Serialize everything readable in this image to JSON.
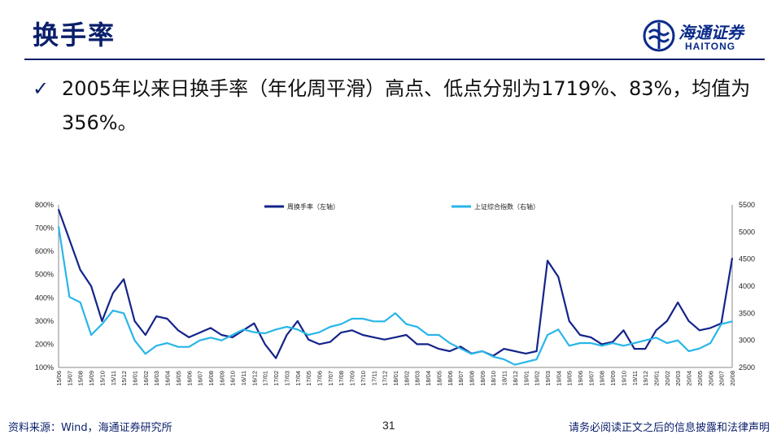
{
  "page": {
    "title": "换手率",
    "bullet_text": "2005年以来日换手率（年化周平滑）高点、低点分别为1719%、83%，均值为356%。",
    "logo_cn": "海通证券",
    "logo_en": "HAITONG",
    "source": "资料来源：Wind，海通证券研究所",
    "page_number": "31",
    "disclaimer": "请务必阅读正文之后的信息披露和法律声明"
  },
  "colors": {
    "turnover": "#14248a",
    "index": "#29b6e8",
    "title": "#0a1f6b"
  },
  "chart_data": {
    "type": "line",
    "categories": [
      "15/06",
      "15/07",
      "15/08",
      "15/09",
      "15/10",
      "15/11",
      "15/12",
      "16/01",
      "16/02",
      "16/03",
      "16/04",
      "16/05",
      "16/06",
      "16/07",
      "16/08",
      "16/09",
      "16/10",
      "16/11",
      "16/12",
      "17/01",
      "17/02",
      "17/03",
      "17/04",
      "17/05",
      "17/06",
      "17/07",
      "17/08",
      "17/09",
      "17/10",
      "17/11",
      "17/12",
      "18/01",
      "18/02",
      "18/03",
      "18/04",
      "18/05",
      "18/06",
      "18/07",
      "18/08",
      "18/09",
      "18/10",
      "18/11",
      "18/12",
      "19/01",
      "19/02",
      "19/03",
      "19/04",
      "19/05",
      "19/06",
      "19/07",
      "19/08",
      "19/09",
      "19/10",
      "19/11",
      "19/12",
      "20/01",
      "20/02",
      "20/03",
      "20/04",
      "20/05",
      "20/06",
      "20/07",
      "20/08"
    ],
    "y_left": {
      "ticks": [
        "100%",
        "200%",
        "300%",
        "400%",
        "500%",
        "600%",
        "700%",
        "800%"
      ],
      "min": 100,
      "max": 800
    },
    "y_right": {
      "ticks": [
        "2500",
        "3000",
        "3500",
        "4000",
        "4500",
        "5000",
        "5500"
      ],
      "min": 2500,
      "max": 5500
    },
    "legend_placement": "top",
    "series": [
      {
        "name": "周换手率（左轴）",
        "axis": "left",
        "values": [
          780,
          650,
          520,
          450,
          300,
          420,
          480,
          300,
          240,
          320,
          310,
          260,
          230,
          250,
          270,
          240,
          230,
          260,
          290,
          200,
          140,
          240,
          300,
          220,
          200,
          210,
          250,
          260,
          240,
          230,
          220,
          230,
          240,
          200,
          200,
          180,
          170,
          190,
          160,
          170,
          150,
          180,
          170,
          160,
          170,
          560,
          490,
          300,
          240,
          230,
          200,
          210,
          260,
          180,
          180,
          260,
          300,
          380,
          300,
          260,
          270,
          290,
          570
        ]
      },
      {
        "name": "上证综合指数（右轴）",
        "axis": "right",
        "values": [
          5100,
          3800,
          3700,
          3100,
          3300,
          3550,
          3500,
          3000,
          2750,
          2900,
          2950,
          2880,
          2880,
          3000,
          3050,
          3000,
          3100,
          3200,
          3150,
          3130,
          3200,
          3250,
          3200,
          3100,
          3150,
          3250,
          3300,
          3400,
          3400,
          3350,
          3350,
          3500,
          3300,
          3250,
          3100,
          3100,
          2950,
          2850,
          2750,
          2800,
          2700,
          2650,
          2550,
          2600,
          2650,
          3100,
          3200,
          2900,
          2950,
          2950,
          2900,
          2950,
          2900,
          2950,
          3000,
          3050,
          2950,
          3000,
          2800,
          2850,
          2950,
          3300,
          3350
        ]
      }
    ]
  }
}
